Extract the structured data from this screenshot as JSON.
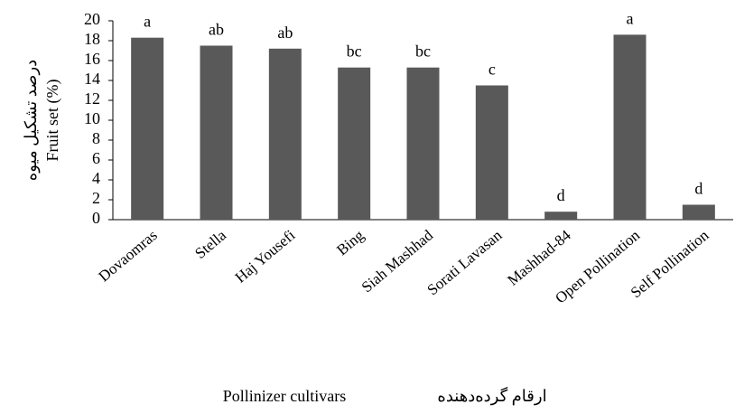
{
  "chart_data": {
    "type": "bar",
    "categories": [
      "Dovaomras",
      "Stella",
      "Haj Yousefi",
      "Bing",
      "Siah Mashhad",
      "Sorati Lavasan",
      "Mashhad-84",
      "Open Pollination",
      "Self Pollination"
    ],
    "values": [
      18.3,
      17.5,
      17.2,
      15.3,
      15.3,
      13.5,
      0.8,
      18.6,
      1.5
    ],
    "annotations": [
      "a",
      "ab",
      "ab",
      "bc",
      "bc",
      "c",
      "d",
      "a",
      "d"
    ],
    "color": "#595959",
    "ylim": [
      0,
      20
    ],
    "yticks": [
      0,
      2,
      4,
      6,
      8,
      10,
      12,
      14,
      16,
      18,
      20
    ],
    "y_label": [
      "درصد تشکیل میوه",
      "Fruit set (%)"
    ],
    "x_label": [
      "Pollinizer cultivars",
      "ارقام گرده‌دهنده"
    ]
  }
}
